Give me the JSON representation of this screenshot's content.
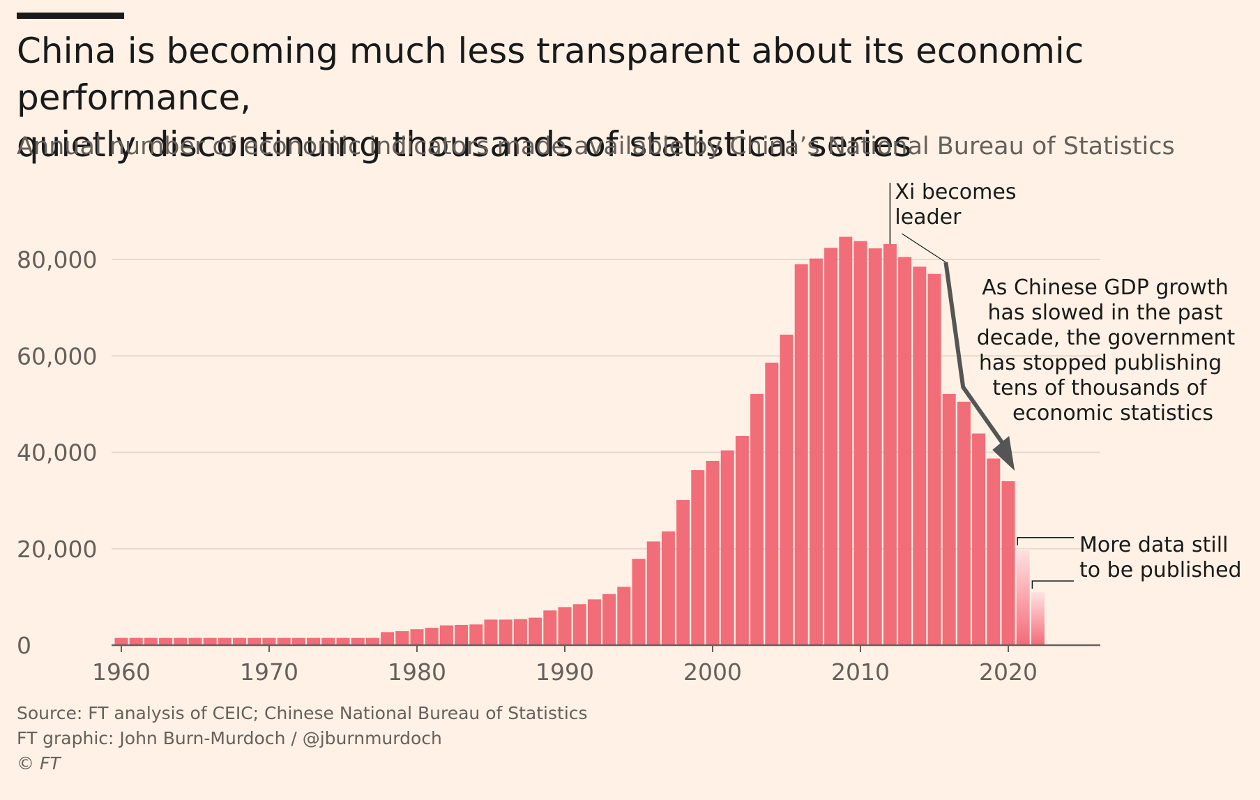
{
  "header": {
    "title": "China is becoming much less transparent about its economic performance,\nquietly discontinuing thousands of statistical series",
    "subtitle": "Annual number of economic indicators made available by China’s National Bureau of Statistics"
  },
  "footer": {
    "source": "Source: FT analysis of CEIC; Chinese National Bureau of Statistics",
    "graphic": "FT graphic: John Burn-Murdoch / @jburnmurdoch",
    "copyright": "© FT"
  },
  "colors": {
    "background": "#FFF1E5",
    "bar": "#F16D78",
    "bar_incomplete": "#F7A9AF",
    "gridline": "#E6D9CE",
    "axis": "#66605c",
    "arrow": "#555555"
  },
  "chart_data": {
    "type": "bar",
    "x": [
      1960,
      1961,
      1962,
      1963,
      1964,
      1965,
      1966,
      1967,
      1968,
      1969,
      1970,
      1971,
      1972,
      1973,
      1974,
      1975,
      1976,
      1977,
      1978,
      1979,
      1980,
      1981,
      1982,
      1983,
      1984,
      1985,
      1986,
      1987,
      1988,
      1989,
      1990,
      1991,
      1992,
      1993,
      1994,
      1995,
      1996,
      1997,
      1998,
      1999,
      2000,
      2001,
      2002,
      2003,
      2004,
      2005,
      2006,
      2007,
      2008,
      2009,
      2010,
      2011,
      2012,
      2013,
      2014,
      2015,
      2016,
      2017,
      2018,
      2019,
      2020,
      2021,
      2022
    ],
    "values": [
      1500,
      1500,
      1500,
      1500,
      1500,
      1500,
      1500,
      1500,
      1500,
      1500,
      1500,
      1500,
      1500,
      1500,
      1500,
      1500,
      1500,
      1500,
      2700,
      2900,
      3300,
      3600,
      4100,
      4200,
      4300,
      5300,
      5300,
      5400,
      5700,
      7200,
      7900,
      8500,
      9500,
      10600,
      12100,
      17900,
      21500,
      23600,
      30100,
      36300,
      38200,
      40400,
      43400,
      52100,
      58600,
      64400,
      79000,
      80200,
      82400,
      84700,
      83800,
      82300,
      83200,
      80500,
      78500,
      77000,
      52100,
      50500,
      43900,
      38700,
      34000,
      20000,
      11000
    ],
    "incomplete_years": [
      2021,
      2022
    ],
    "xlabel": "",
    "ylabel": "",
    "xticks": [
      1960,
      1970,
      1980,
      1990,
      2000,
      2010,
      2020
    ],
    "xtick_labels": [
      "1960",
      "1970",
      "1980",
      "1990",
      "2000",
      "2010",
      "2020"
    ],
    "yticks": [
      0,
      20000,
      40000,
      60000,
      80000
    ],
    "ytick_labels": [
      "0",
      "20,000",
      "40,000",
      "60,000",
      "80,000"
    ],
    "ylim": [
      0,
      90000
    ],
    "xlim": [
      1959.5,
      2026
    ],
    "grid": true,
    "annotations": {
      "xi": {
        "x": 2012,
        "lines": [
          "Xi becomes",
          "leader"
        ]
      },
      "decline": {
        "from_x": 2015,
        "to_x": 2021,
        "lines": [
          "As Chinese GDP growth",
          "has slowed in the past",
          "decade, the government",
          "has stopped publishing",
          "tens of thousands of",
          "economic statistics"
        ]
      },
      "incomplete": {
        "lines": [
          "More data still",
          "to be published"
        ]
      }
    }
  }
}
